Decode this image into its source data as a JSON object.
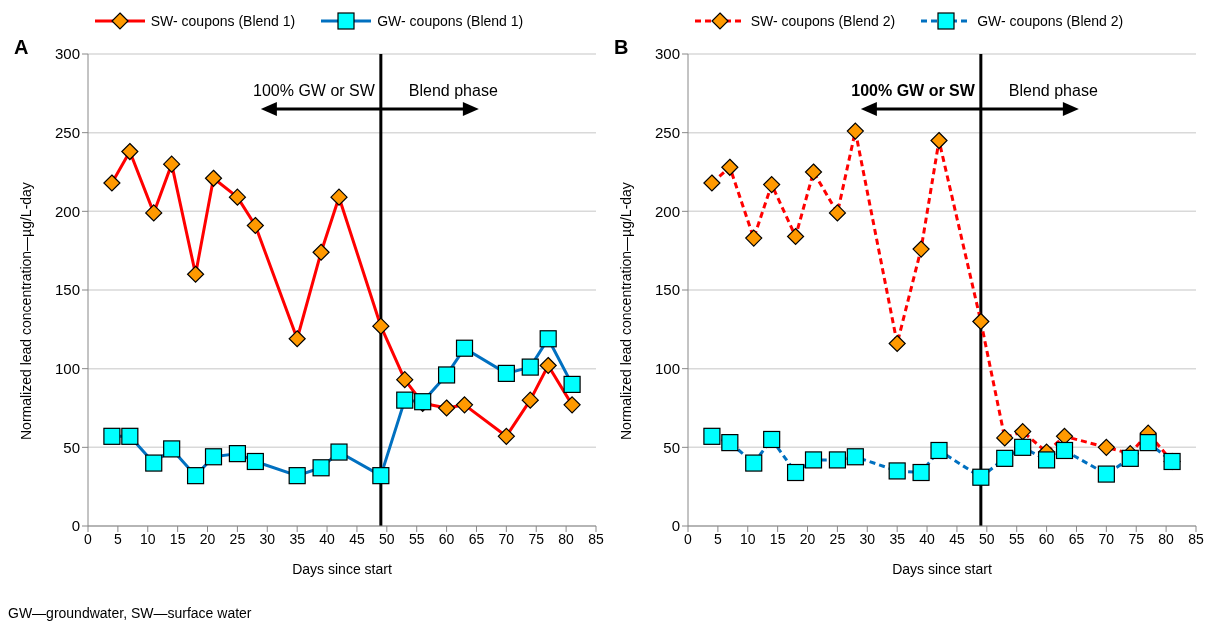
{
  "chart_data": [
    {
      "type": "line",
      "title": "A",
      "xlabel": "Days since start",
      "ylabel": "Normalized lead concentration—µg/L-day",
      "x": [
        4,
        7,
        11,
        14,
        18,
        21,
        25,
        28,
        35,
        39,
        42,
        49,
        53,
        56,
        60,
        63,
        70,
        74,
        77,
        81
      ],
      "series": [
        {
          "name": "SW- coupons (Blend 1)",
          "color": "#ff0000",
          "marker": "diamond",
          "line_style": "solid",
          "values": [
            218,
            238,
            199,
            230,
            160,
            221,
            209,
            191,
            119,
            174,
            209,
            127,
            93,
            78,
            75,
            77,
            57,
            80,
            102,
            77
          ],
          "colors": [
            "#ff9900",
            "#ff9900",
            "#ff9900",
            "#ff9900",
            "#ff9900",
            "#ff9900",
            "#ff9900",
            "#ff9900",
            "#ff9900",
            "#ff9900",
            "#ff9900",
            "#ff9900",
            "#ff9900",
            "#ff9900",
            "#ff9900",
            "#ff9900",
            "#ff9900",
            "#ff9900",
            "#ff9900",
            "#ff9900"
          ]
        },
        {
          "name": "GW- coupons (Blend 1)",
          "color": "#0070c0",
          "marker": "square",
          "line_style": "solid",
          "values": [
            57,
            57,
            40,
            49,
            32,
            44,
            46,
            41,
            32,
            37,
            47,
            32,
            80,
            79,
            96,
            113,
            97,
            101,
            119,
            90
          ],
          "colors": [
            "#00ffff",
            "#00ffff",
            "#00ffff",
            "#00ffff",
            "#00ffff",
            "#00ffff",
            "#00ffff",
            "#00ffff",
            "#00ffff",
            "#00ffff",
            "#00ffff",
            "#00ffff",
            "#00ffff",
            "#00ffff",
            "#00ffff",
            "#00ffff",
            "#00ffff",
            "#00ffff",
            "#00ffff",
            "#00ffff"
          ]
        }
      ],
      "xlim": [
        0,
        85
      ],
      "xticks": [
        0,
        5,
        10,
        15,
        20,
        25,
        30,
        35,
        40,
        45,
        50,
        55,
        60,
        65,
        70,
        75,
        80,
        85
      ],
      "ylim": [
        0,
        300
      ],
      "yticks": [
        0,
        50,
        100,
        150,
        200,
        250,
        300
      ],
      "grid": "y",
      "legend": "top",
      "ref_lines": [
        {
          "axis": "x",
          "value": 49,
          "color": "#000000"
        }
      ],
      "annotations": [
        "100% GW or SW",
        "Blend phase",
        "GW—groundwater, SW—surface water"
      ]
    },
    {
      "type": "line",
      "title": "B",
      "xlabel": "Days since start",
      "ylabel": "Normalized lead concentration—µg/L-day",
      "x": [
        4,
        7,
        11,
        14,
        18,
        21,
        25,
        28,
        35,
        39,
        42,
        49,
        53,
        56,
        60,
        63,
        70,
        74,
        77,
        81
      ],
      "series": [
        {
          "name": "SW- coupons (Blend 2)",
          "color": "#ff0000",
          "marker": "diamond",
          "line_style": "dashed",
          "values": [
            218,
            228,
            183,
            217,
            184,
            225,
            199,
            251,
            116,
            176,
            245,
            130,
            56,
            60,
            47,
            57,
            50,
            46,
            59,
            41
          ],
          "colors": [
            "#ff9900",
            "#ff9900",
            "#ff9900",
            "#ff9900",
            "#ff9900",
            "#ff9900",
            "#ff9900",
            "#ff9900",
            "#ff9900",
            "#ff9900",
            "#ff9900",
            "#ff9900",
            "#ff9900",
            "#ff9900",
            "#ff9900",
            "#ff9900",
            "#ff9900",
            "#ff9900",
            "#ff9900",
            "#ff9900"
          ]
        },
        {
          "name": "GW- coupons (Blend 2)",
          "color": "#0070c0",
          "marker": "square",
          "line_style": "dashed",
          "values": [
            57,
            53,
            40,
            55,
            34,
            42,
            42,
            44,
            35,
            34,
            48,
            31,
            43,
            50,
            42,
            48,
            33,
            43,
            53,
            41
          ],
          "colors": [
            "#00ffff",
            "#00ffff",
            "#00ffff",
            "#00ffff",
            "#00ffff",
            "#00ffff",
            "#00ffff",
            "#00ffff",
            "#00ffff",
            "#00ffff",
            "#00ffff",
            "#00ffff",
            "#00ffff",
            "#00ffff",
            "#00ffff",
            "#00ffff",
            "#00ffff",
            "#00ffff",
            "#00ffff",
            "#00ffff"
          ]
        }
      ],
      "xlim": [
        0,
        85
      ],
      "xticks": [
        0,
        5,
        10,
        15,
        20,
        25,
        30,
        35,
        40,
        45,
        50,
        55,
        60,
        65,
        70,
        75,
        80,
        85
      ],
      "ylim": [
        0,
        300
      ],
      "yticks": [
        0,
        50,
        100,
        150,
        200,
        250,
        300
      ],
      "grid": "y",
      "legend": "top",
      "ref_lines": [
        {
          "axis": "x",
          "value": 49,
          "color": "#000000"
        }
      ],
      "annotations": [
        "100% GW or SW",
        "Blend phase"
      ]
    }
  ]
}
